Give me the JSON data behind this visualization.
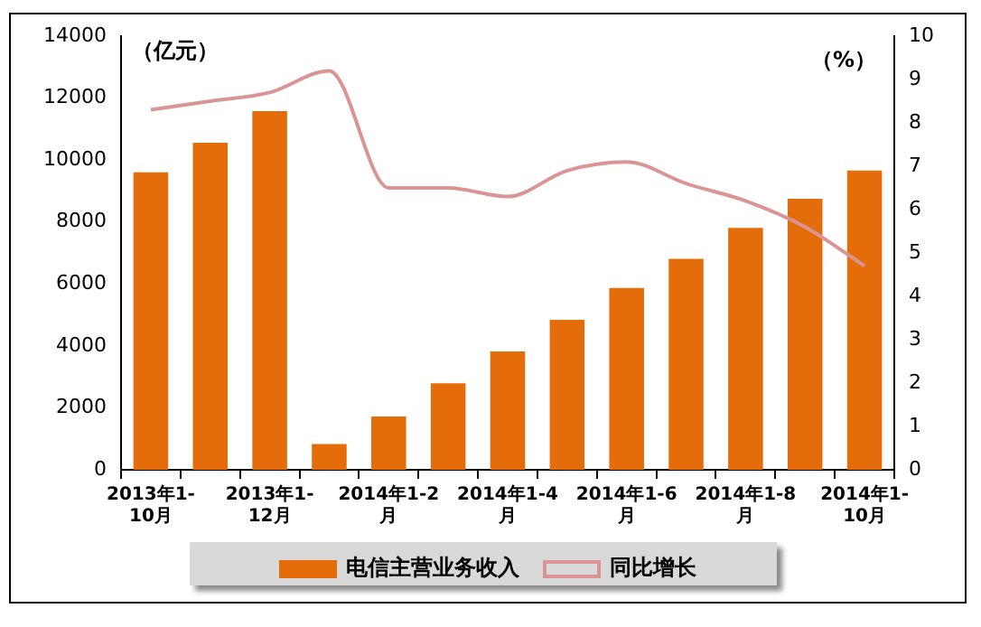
{
  "chart_data": {
    "type": "bar",
    "ylabel": "（亿元）",
    "y2label": "（%）",
    "categories": [
      "2013年1-10月",
      null,
      "2013年1-12月",
      null,
      "2014年1-2月",
      null,
      "2014年1-4月",
      null,
      "2014年1-6月",
      null,
      "2014年1-8月",
      null,
      "2014年1-10月"
    ],
    "series": [
      {
        "name": "电信主营业务收入",
        "color": "#e46c0a",
        "values": [
          9600,
          10560,
          11580,
          830,
          1720,
          2790,
          3820,
          4840,
          5870,
          6810,
          7810,
          8750,
          9660
        ]
      },
      {
        "name": "同比增长",
        "type": "line",
        "axis": "y2",
        "color": "#d99594",
        "values": [
          8.3,
          8.5,
          8.7,
          9.2,
          6.5,
          6.5,
          6.3,
          6.9,
          7.1,
          6.6,
          6.2,
          5.6,
          4.7
        ]
      }
    ],
    "ylim": [
      0,
      14000
    ],
    "yticks": [
      0,
      2000,
      4000,
      6000,
      8000,
      10000,
      12000,
      14000
    ],
    "y2lim": [
      0,
      10
    ],
    "y2ticks": [
      0,
      1,
      2,
      3,
      4,
      5,
      6,
      7,
      8,
      9,
      10
    ],
    "grid": false,
    "legend": "bottom",
    "marker": "none"
  }
}
